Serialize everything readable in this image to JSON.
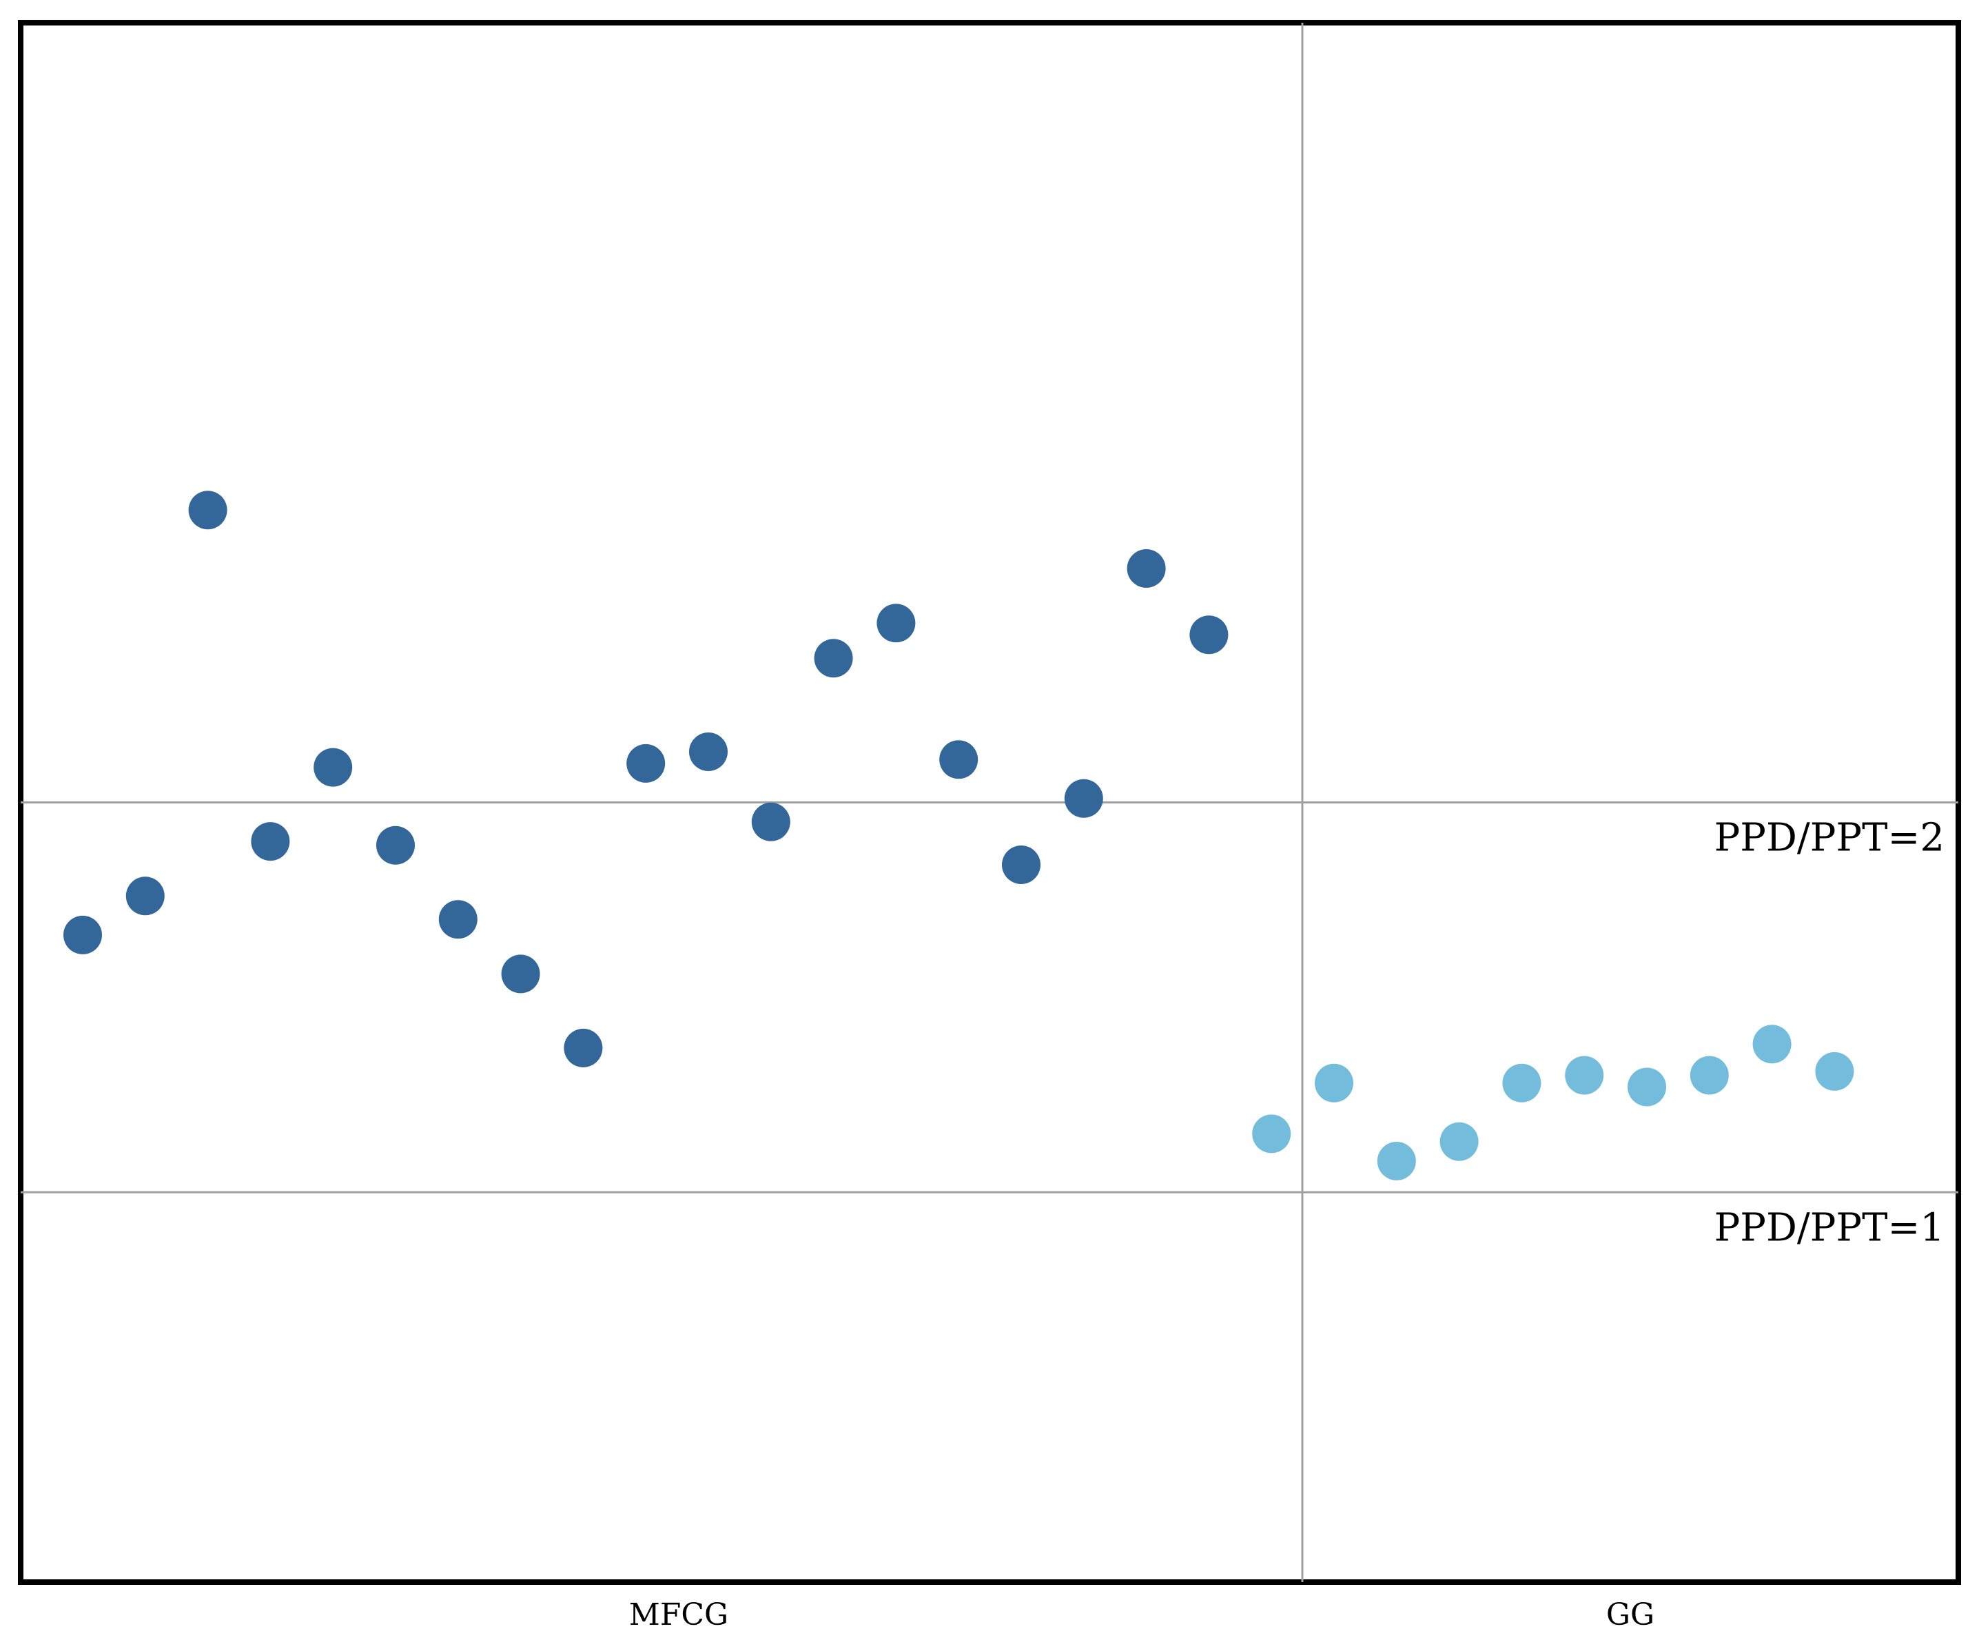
{
  "chart_data": {
    "type": "scatter",
    "title": "",
    "xlabel": "",
    "ylabel": "",
    "ylim": [
      0,
      4
    ],
    "grid": false,
    "legend": "none",
    "groups": [
      {
        "label": "MFCG",
        "color": "#336699",
        "values": [
          1.66,
          1.76,
          2.75,
          1.9,
          2.09,
          1.89,
          1.7,
          1.56,
          1.37,
          2.1,
          2.13,
          1.95,
          2.37,
          2.46,
          2.11,
          1.84,
          2.01,
          2.6,
          2.43
        ]
      },
      {
        "label": "GG",
        "color": "#73bcdc",
        "values": [
          1.15,
          1.28,
          1.08,
          1.13,
          1.28,
          1.3,
          1.27,
          1.3,
          1.38,
          1.31
        ]
      }
    ],
    "reference_lines": [
      {
        "value": 2,
        "label": "PPD/PPT=2"
      },
      {
        "value": 1,
        "label": "PPD/PPT=1"
      }
    ]
  }
}
